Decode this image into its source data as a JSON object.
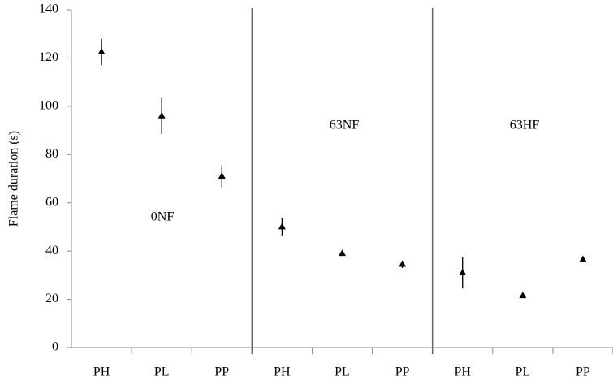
{
  "chart_data": {
    "type": "point",
    "y_label": "Flame duration (s)",
    "categories": [
      "PH",
      "PL",
      "PP",
      "PH",
      "PL",
      "PP",
      "PH",
      "PL",
      "PP"
    ],
    "series": [
      {
        "color": "#000000",
        "values": [
          122.5,
          96,
          71,
          50,
          39,
          34.5,
          31,
          21.5,
          36.5
        ],
        "errors": [
          5.5,
          7.5,
          4.5,
          3.5,
          1,
          1.5,
          6.5,
          0.5,
          1
        ]
      }
    ],
    "annotations": [
      "0NF",
      "63NF",
      "63HF"
    ],
    "ylim": [
      0,
      140
    ],
    "yticks": [
      0,
      20,
      40,
      60,
      80,
      100,
      120,
      140
    ]
  }
}
